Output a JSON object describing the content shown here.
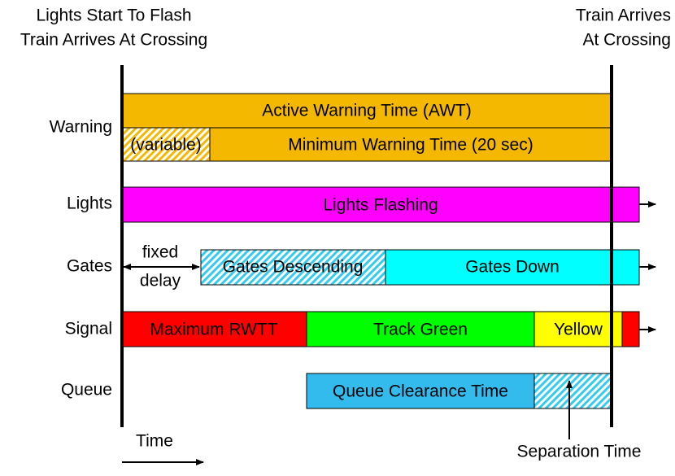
{
  "header": {
    "left": [
      "Lights Start To Flash",
      "Train Arrives At Crossing"
    ],
    "right": [
      "Train Arrives",
      "At Crossing"
    ]
  },
  "rows": [
    {
      "label": "Warning",
      "segments": [
        "Active Warning Time (AWT)",
        "(variable)",
        "Minimum Warning Time (20 sec)"
      ]
    },
    {
      "label": "Lights",
      "segments": [
        "Lights Flashing"
      ]
    },
    {
      "label": "Gates",
      "segments": [
        "Gates Descending",
        "Gates Down"
      ],
      "note": [
        "fixed",
        "delay"
      ]
    },
    {
      "label": "Signal",
      "segments": [
        "Maximum RWTT",
        "Track Green",
        "Yellow"
      ]
    },
    {
      "label": "Queue",
      "segments": [
        "Queue Clearance Time"
      ]
    }
  ],
  "annotations": {
    "separation": "Separation Time",
    "time": "Time"
  }
}
